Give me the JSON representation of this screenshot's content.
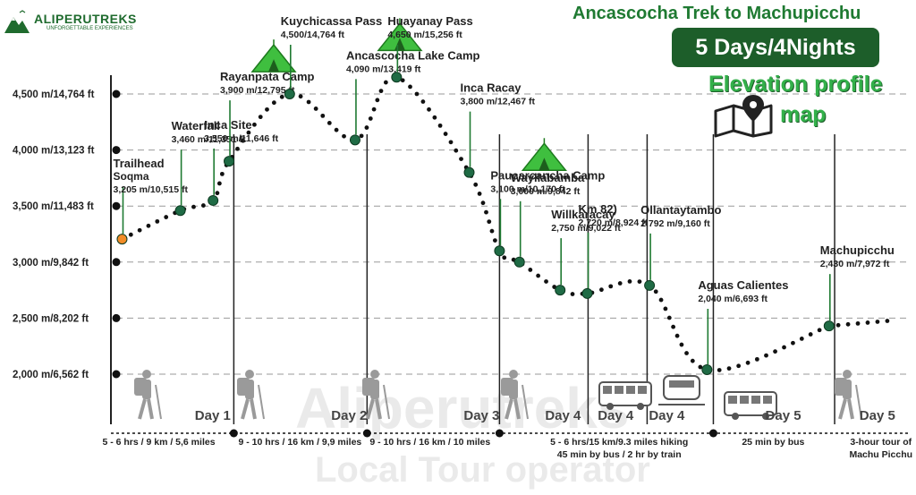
{
  "brand": {
    "name": "ALIPERUTREKS",
    "tagline": "UNFORGETTABLE EXPERIENCES"
  },
  "header": {
    "title": "Ancascocha Trek to Machupicchu",
    "duration": "5 Days/4Nights",
    "subtitle_line1": "Elevation profile",
    "subtitle_line2": "map"
  },
  "watermark": {
    "line1": "Aliperutreks",
    "line2": "Local Tour operator"
  },
  "colors": {
    "dark_green": "#1d5e2a",
    "bright_green": "#33b04a",
    "marker": "#1f6b45",
    "trailhead": "#f28c28",
    "grid": "#9a9a9a"
  },
  "chart_data": {
    "type": "line",
    "y_axis": {
      "unit": "m",
      "ticks": [
        {
          "value": 4500,
          "label": "4,500 m/14,764 ft"
        },
        {
          "value": 4000,
          "label": "4,000 m/13,123 ft"
        },
        {
          "value": 3500,
          "label": "3,500 m/11,483 ft"
        },
        {
          "value": 3000,
          "label": "3,000 m/9,842 ft"
        },
        {
          "value": 2500,
          "label": "2,500 m/8,202 ft"
        },
        {
          "value": 2000,
          "label": "2,000 m/6,562 ft"
        }
      ],
      "ylim": [
        2000,
        4500
      ],
      "grid": true
    },
    "waypoints": [
      {
        "name": "Trailhead",
        "extra": "Soqma",
        "elevation": "3,205 m/10,515 ft",
        "elev_m": 3205,
        "pos": 0.014,
        "kind": "start"
      },
      {
        "name": "Waterfall",
        "elevation": "3,460 m/11,351 ft",
        "elev_m": 3460,
        "pos": 0.087
      },
      {
        "name": "Inca Site",
        "elevation": "3,550 m/11,646 ft",
        "elev_m": 3550,
        "pos": 0.128
      },
      {
        "name": "Rayanpata Camp",
        "elevation": "3,900 m/12,795 ft",
        "elev_m": 3900,
        "pos": 0.148,
        "kind": "camp"
      },
      {
        "name": "Kuychicassa Pass",
        "elevation": "4,500/14,764 ft",
        "elev_m": 4500,
        "pos": 0.224
      },
      {
        "name": "Ancascocha Lake Camp",
        "elevation": "4,090 m/13,419 ft",
        "elev_m": 4090,
        "pos": 0.306,
        "kind": "camp"
      },
      {
        "name": "Huayanay Pass",
        "elevation": "4,650 m/15,256 ft",
        "elev_m": 4650,
        "pos": 0.358
      },
      {
        "name": "Inca Racay",
        "elevation": "3,800 m/12,467 ft",
        "elev_m": 3800,
        "pos": 0.449
      },
      {
        "name": "Paucarcancha Camp",
        "elevation": "3,100 m/10,170 ft",
        "elev_m": 3100,
        "pos": 0.487,
        "kind": "camp"
      },
      {
        "name": "Wayllabamba",
        "elevation": "3,000 m/9,842 ft",
        "elev_m": 3000,
        "pos": 0.512
      },
      {
        "name": "Willkaracay",
        "elevation": "2,750 m/9,022 ft",
        "elev_m": 2750,
        "pos": 0.563
      },
      {
        "name": "Km 82)",
        "elevation": "2,720 m/8,924 ft",
        "elev_m": 2720,
        "pos": 0.597
      },
      {
        "name": "Ollantaytambo",
        "elevation": "2,792 m/9,160 ft",
        "elev_m": 2792,
        "pos": 0.675
      },
      {
        "name": "Aguas Calientes",
        "elevation": "2,040 m/6,693 ft",
        "elev_m": 2040,
        "pos": 0.747
      },
      {
        "name": "Machupicchu",
        "elevation": "2,430 m/7,972 ft",
        "elev_m": 2430,
        "pos": 0.9
      }
    ],
    "days": [
      {
        "label": "Day 1",
        "pos": 0.15
      },
      {
        "label": "Day 2",
        "pos": 0.321
      },
      {
        "label": "Day 3",
        "pos": 0.487
      },
      {
        "label": "Day 4",
        "pos": 0.589
      },
      {
        "label": "Day 4",
        "pos": 0.655
      },
      {
        "label": "Day 4",
        "pos": 0.719
      },
      {
        "label": "Day 5",
        "pos": 0.865
      },
      {
        "label": "Day 5",
        "pos": 0.983
      }
    ],
    "segments": [
      {
        "line1": "5 - 6 hrs / 9 km / 5,6 miles",
        "line2": "",
        "pos": 0.06
      },
      {
        "line1": "9 - 10 hrs / 16 km / 9,9 miles",
        "line2": "",
        "pos": 0.237
      },
      {
        "line1": "9 - 10 hrs / 16 km / 10 miles",
        "line2": "",
        "pos": 0.4
      },
      {
        "line1": "5 - 6 hrs/15 km/9.3 miles hiking",
        "line2": "45 min by bus / 2 hr by train",
        "pos": 0.637
      },
      {
        "line1": "25 min by bus",
        "line2": "",
        "pos": 0.83
      },
      {
        "line1": "3-hour tour of",
        "line2": "Machu Picchu",
        "pos": 0.965
      }
    ]
  }
}
